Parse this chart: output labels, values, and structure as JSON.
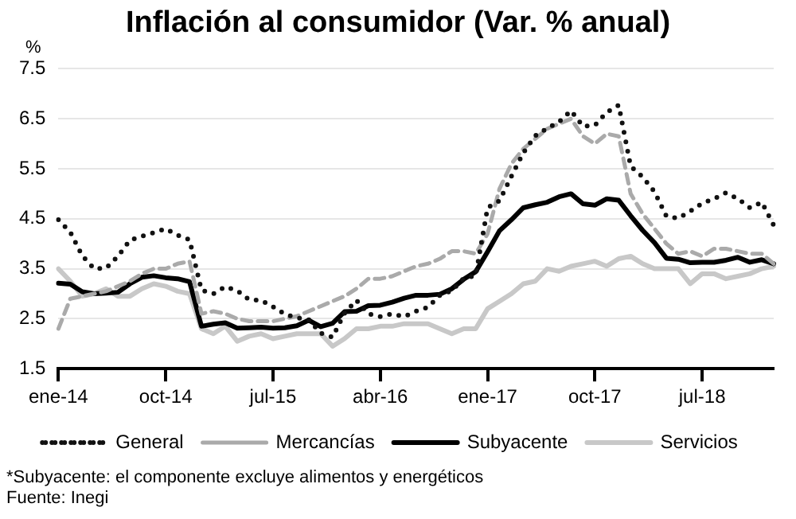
{
  "chart_data": {
    "type": "line",
    "title": "Inflación al consumidor (Var. % anual)",
    "ylabel": "%",
    "categories": [
      "ene-14",
      null,
      null,
      null,
      null,
      null,
      null,
      null,
      null,
      "oct-14",
      null,
      null,
      null,
      null,
      null,
      null,
      null,
      null,
      "jul-15",
      null,
      null,
      null,
      null,
      null,
      null,
      null,
      null,
      "abr-16",
      null,
      null,
      null,
      null,
      null,
      null,
      null,
      null,
      "ene-17",
      null,
      null,
      null,
      null,
      null,
      null,
      null,
      null,
      "oct-17",
      null,
      null,
      null,
      null,
      null,
      null,
      null,
      null,
      "jul-18",
      null,
      null,
      null,
      null,
      null,
      null
    ],
    "ylim": [
      1.5,
      7.5
    ],
    "yticks": [
      1.5,
      2.5,
      3.5,
      4.5,
      5.5,
      6.5,
      7.5
    ],
    "grid": "y",
    "legend": "bottom",
    "marker": "none",
    "series": [
      {
        "name": "General",
        "color": "#111111",
        "line_style": "dotted",
        "values": [
          4.48,
          4.23,
          3.76,
          3.5,
          3.51,
          3.75,
          4.07,
          4.15,
          4.22,
          4.3,
          4.17,
          4.08,
          3.07,
          3.0,
          3.14,
          3.06,
          2.88,
          2.87,
          2.74,
          2.59,
          2.52,
          2.48,
          2.21,
          2.13,
          2.61,
          2.87,
          2.6,
          2.54,
          2.6,
          2.54,
          2.65,
          2.73,
          2.97,
          3.06,
          3.31,
          3.36,
          4.72,
          4.86,
          5.35,
          5.82,
          6.16,
          6.31,
          6.44,
          6.66,
          6.35,
          6.37,
          6.63,
          6.77,
          5.55,
          5.34,
          5.04,
          4.55,
          4.51,
          4.65,
          4.81,
          4.9,
          5.02,
          4.9,
          4.72,
          4.83,
          4.37
        ]
      },
      {
        "name": "Mercancías",
        "color": "#aaaaaa",
        "line_style": "dashed",
        "values": [
          2.3,
          2.9,
          2.95,
          3.0,
          3.05,
          3.15,
          3.25,
          3.4,
          3.5,
          3.5,
          3.6,
          3.65,
          2.6,
          2.65,
          2.6,
          2.5,
          2.45,
          2.45,
          2.45,
          2.5,
          2.55,
          2.65,
          2.75,
          2.85,
          2.95,
          3.1,
          3.3,
          3.3,
          3.35,
          3.45,
          3.55,
          3.6,
          3.7,
          3.85,
          3.85,
          3.8,
          4.2,
          5.1,
          5.6,
          5.9,
          6.1,
          6.3,
          6.4,
          6.5,
          6.15,
          6.0,
          6.2,
          6.15,
          5.0,
          4.6,
          4.3,
          4.0,
          3.8,
          3.85,
          3.75,
          3.9,
          3.9,
          3.85,
          3.8,
          3.8,
          3.6
        ]
      },
      {
        "name": "Subyacente",
        "color": "#000000",
        "line_style": "solid",
        "values": [
          3.21,
          3.19,
          3.04,
          3.0,
          3.01,
          3.03,
          3.2,
          3.33,
          3.36,
          3.32,
          3.3,
          3.24,
          2.35,
          2.39,
          2.42,
          2.31,
          2.32,
          2.33,
          2.31,
          2.32,
          2.36,
          2.47,
          2.34,
          2.41,
          2.64,
          2.65,
          2.76,
          2.77,
          2.83,
          2.91,
          2.97,
          2.97,
          2.99,
          3.1,
          3.29,
          3.44,
          3.84,
          4.26,
          4.48,
          4.72,
          4.78,
          4.83,
          4.94,
          5.0,
          4.8,
          4.77,
          4.9,
          4.87,
          4.56,
          4.27,
          4.02,
          3.71,
          3.69,
          3.62,
          3.63,
          3.63,
          3.67,
          3.73,
          3.63,
          3.68,
          3.6
        ]
      },
      {
        "name": "Servicios",
        "color": "#c8c8c8",
        "line_style": "solid",
        "values": [
          3.5,
          3.25,
          2.95,
          3.0,
          3.1,
          2.95,
          2.95,
          3.1,
          3.2,
          3.15,
          3.05,
          3.0,
          2.3,
          2.2,
          2.35,
          2.05,
          2.15,
          2.2,
          2.1,
          2.15,
          2.2,
          2.2,
          2.2,
          1.95,
          2.1,
          2.3,
          2.3,
          2.35,
          2.35,
          2.4,
          2.4,
          2.4,
          2.3,
          2.2,
          2.3,
          2.3,
          2.7,
          2.85,
          3.0,
          3.2,
          3.25,
          3.5,
          3.45,
          3.55,
          3.6,
          3.65,
          3.55,
          3.7,
          3.75,
          3.6,
          3.5,
          3.5,
          3.5,
          3.2,
          3.4,
          3.4,
          3.3,
          3.35,
          3.4,
          3.5,
          3.55
        ]
      }
    ],
    "annotations": [
      "*Subyacente: el componente excluye alimentos y energéticos",
      "Fuente: Inegi"
    ]
  }
}
